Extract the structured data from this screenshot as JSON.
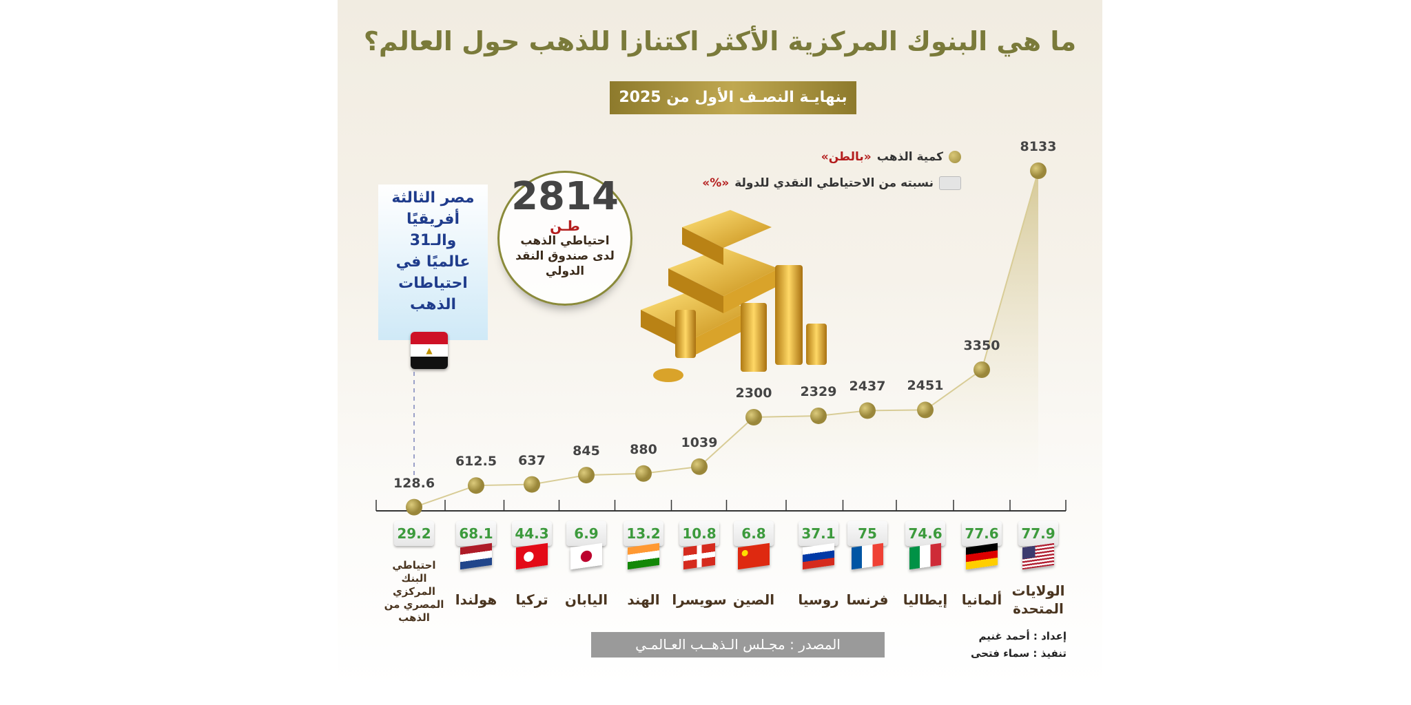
{
  "title": "ما هي البنوك المركزية الأكثر اكتنازا للذهب حول العالم؟",
  "subtitle": "بنهايـة النصـف الأول من 2025",
  "legend": {
    "gold_label": "كمية الذهب",
    "gold_unit": "«بالطن»",
    "pct_label": "نسبته من الاحتياطي النقدي للدولة",
    "pct_unit": "«%»"
  },
  "imf_callout": {
    "value": "2814",
    "unit": "طـن",
    "line1": "احتياطي الذهب",
    "line2": "لدى صندوق النقد",
    "line3": "الدولي"
  },
  "egypt_callout": {
    "lines": [
      "مصر الثالثة",
      "أفريقيًا",
      "والـ31",
      "عالميًا في",
      "احتياطات",
      "الذهب"
    ]
  },
  "colors": {
    "accent_gold": "#a8963f",
    "pct_green": "#3c9a3c",
    "egypt_blue": "#1f3c8c",
    "unit_red": "#b41e1e"
  },
  "chart_data": {
    "type": "line",
    "title": "ما هي البنوك المركزية الأكثر اكتنازا للذهب حول العالم؟",
    "categories": [
      "احتياطي البنك المركزي المصري من الذهب",
      "هولندا",
      "تركيا",
      "اليابان",
      "الهند",
      "سويسرا",
      "الصين",
      "روسيا",
      "فرنسا",
      "إيطاليا",
      "ألمانيا",
      "الولايات المتحدة"
    ],
    "series": [
      {
        "name": "كمية الذهب «بالطن»",
        "values": [
          128.6,
          612.5,
          637,
          845,
          880,
          1039,
          2300,
          2329,
          2437,
          2451,
          3350,
          8133
        ],
        "labels": [
          "128.6",
          "612.5",
          "637",
          "845",
          "880",
          "1039",
          "2300",
          "2329",
          "2437",
          "2451",
          "3350",
          "8133"
        ]
      },
      {
        "name": "نسبته من الاحتياطي النقدي للدولة «%»",
        "values": [
          29.2,
          68.1,
          44.3,
          6.9,
          13.2,
          10.8,
          6.8,
          37.1,
          75,
          74.6,
          77.6,
          77.9
        ],
        "labels": [
          "29.2",
          "68.1",
          "44.3",
          "6.9",
          "13.2",
          "10.8",
          "6.8",
          "37.1",
          "75",
          "74.6",
          "77.6",
          "77.9"
        ]
      }
    ],
    "flags": [
      "egypt",
      "netherlands",
      "turkey",
      "japan",
      "india",
      "switzerland",
      "china",
      "russia",
      "france",
      "italy",
      "germany",
      "usa"
    ],
    "grid": false,
    "legend_placement": "top-right"
  },
  "source": "المصدر : مجـلس الـذهــب العـالمـي",
  "credits": {
    "prepared": "إعداد : أحمد غنيم",
    "executed": "تنفيذ : سماء فتحى"
  }
}
